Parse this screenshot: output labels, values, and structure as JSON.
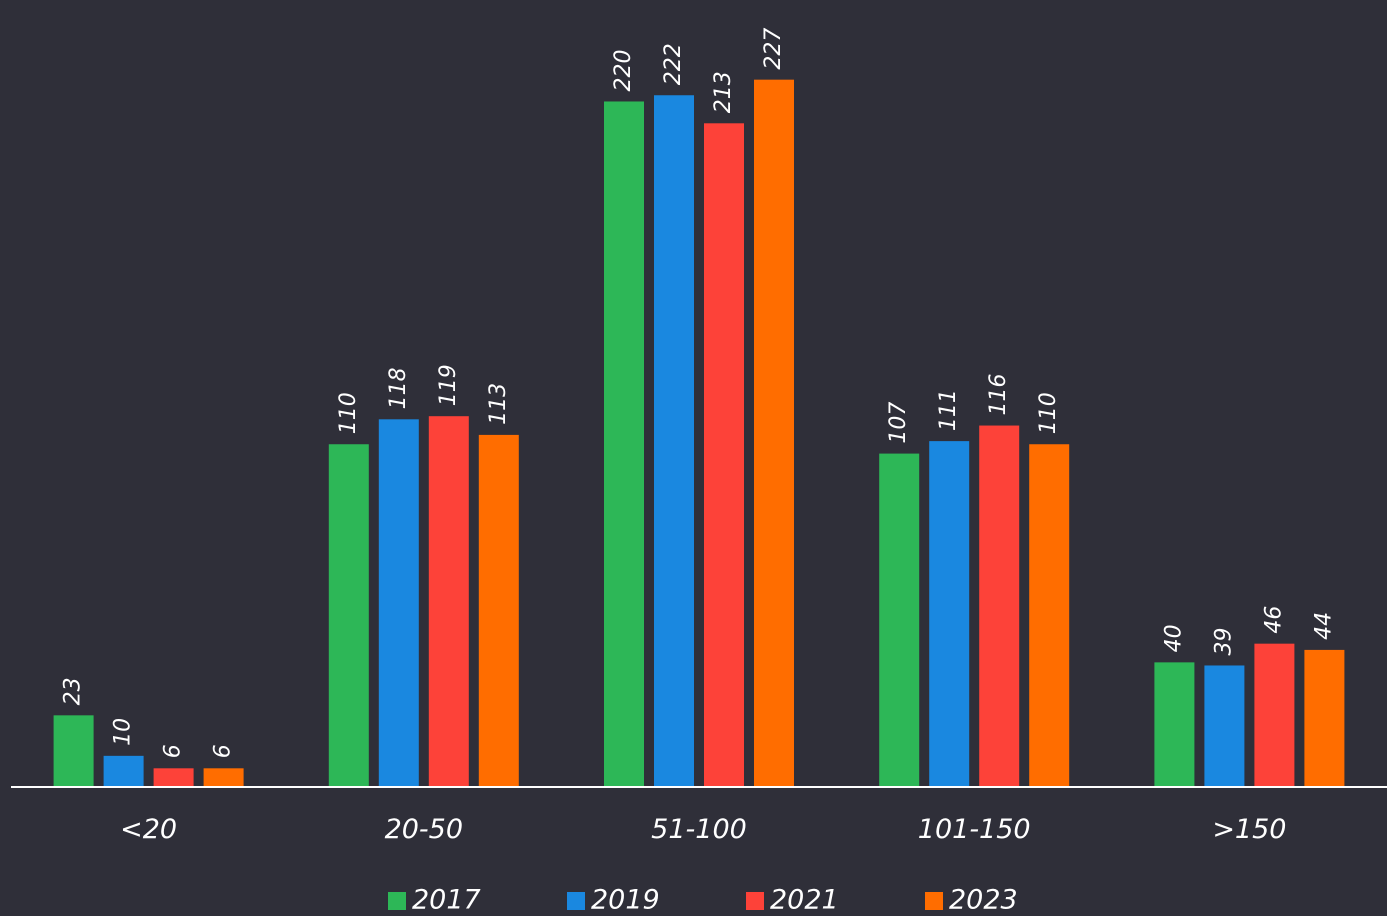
{
  "chart_data": {
    "type": "bar",
    "categories": [
      "<20",
      "20-50",
      "51-100",
      "101-150",
      ">150"
    ],
    "series": [
      {
        "name": "2017",
        "color": "#2db757",
        "values": [
          23,
          110,
          220,
          107,
          40
        ]
      },
      {
        "name": "2019",
        "color": "#1a88e0",
        "values": [
          10,
          118,
          222,
          111,
          39
        ]
      },
      {
        "name": "2021",
        "color": "#fd4239",
        "values": [
          6,
          119,
          213,
          116,
          46
        ]
      },
      {
        "name": "2023",
        "color": "#ff6d00",
        "values": [
          6,
          113,
          227,
          110,
          44
        ]
      }
    ],
    "ylim": [
      0,
      250
    ],
    "grid": false,
    "legend": "bottom"
  }
}
